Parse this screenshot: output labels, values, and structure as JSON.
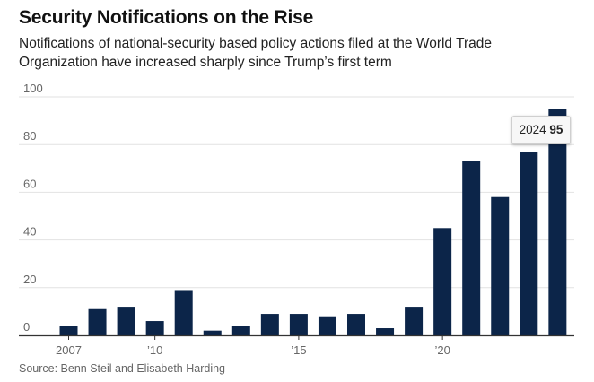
{
  "header": {
    "title": "Security Notifications on the Rise",
    "subtitle": "Notifications of national-security based policy actions filed at the World Trade Organization have increased sharply since Trump’s first term"
  },
  "footer": {
    "source": "Source: Benn Steil and Elisabeth Harding"
  },
  "tooltip": {
    "year": "2024",
    "value": "95"
  },
  "colors": {
    "bar": "#0c2549",
    "grid": "#e2e2e2",
    "axis": "#333333"
  },
  "chart_data": {
    "type": "bar",
    "title": "Security Notifications on the Rise",
    "xlabel": "",
    "ylabel": "",
    "categories": [
      "2007",
      "2008",
      "2009",
      "2010",
      "2011",
      "2012",
      "2013",
      "2014",
      "2015",
      "2016",
      "2017",
      "2018",
      "2019",
      "2020",
      "2021",
      "2022",
      "2023",
      "2024"
    ],
    "values": [
      4,
      11,
      12,
      6,
      19,
      2,
      4,
      9,
      9,
      8,
      9,
      3,
      12,
      45,
      73,
      58,
      77,
      95
    ],
    "ylim": [
      0,
      100
    ],
    "yticks": [
      {
        "value": 0,
        "label": "0"
      },
      {
        "value": 20,
        "label": "20"
      },
      {
        "value": 40,
        "label": "40"
      },
      {
        "value": 60,
        "label": "60"
      },
      {
        "value": 80,
        "label": "80"
      },
      {
        "value": 100,
        "label": "100"
      }
    ],
    "xticks": [
      {
        "index": 0,
        "label": "2007"
      },
      {
        "index": 3,
        "label": "’10"
      },
      {
        "index": 8,
        "label": "’15"
      },
      {
        "index": 13,
        "label": "’20"
      }
    ],
    "grid": true
  }
}
